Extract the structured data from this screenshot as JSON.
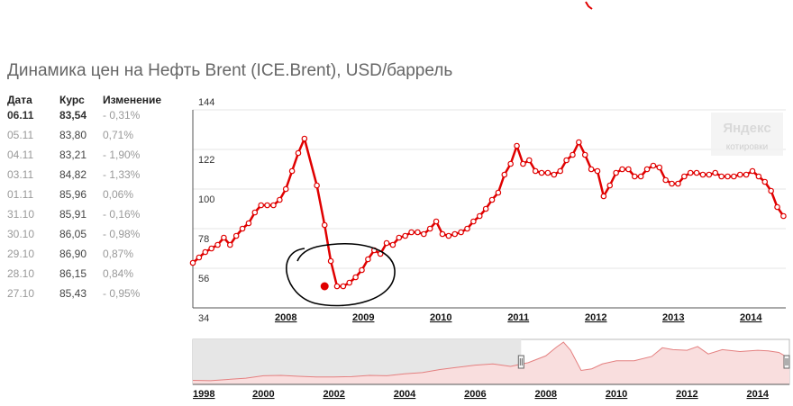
{
  "title": "Динамика цен на Нефть Brent (ICE.Brent), USD/баррель",
  "table": {
    "headers": [
      "Дата",
      "Курс",
      "Изменение"
    ],
    "rows": [
      {
        "date": "06.11",
        "value": "83,54",
        "change": "- 0,31%"
      },
      {
        "date": "05.11",
        "value": "83,80",
        "change": "0,71%"
      },
      {
        "date": "04.11",
        "value": "83,21",
        "change": "- 1,90%"
      },
      {
        "date": "03.11",
        "value": "84,82",
        "change": "- 1,33%"
      },
      {
        "date": "01.11",
        "value": "85,96",
        "change": "0,06%"
      },
      {
        "date": "31.10",
        "value": "85,91",
        "change": "- 0,16%"
      },
      {
        "date": "30.10",
        "value": "86,05",
        "change": "- 0,98%"
      },
      {
        "date": "29.10",
        "value": "86,90",
        "change": "0,87%"
      },
      {
        "date": "28.10",
        "value": "86,15",
        "change": "0,84%"
      },
      {
        "date": "27.10",
        "value": "85,43",
        "change": "- 0,95%"
      }
    ]
  },
  "watermark": {
    "brand": "Яндекс",
    "sub": "котировки"
  },
  "colors": {
    "line": "#e00000",
    "area": "#f9dede",
    "selection": "#e6e6e6",
    "grid": "#e4e4e4",
    "annotation": "#000000"
  },
  "chart_data": [
    {
      "type": "line",
      "title": "",
      "xlabel": "",
      "ylabel": "",
      "ylim": [
        34,
        144
      ],
      "xlim": [
        2007.3,
        2014.95
      ],
      "y_ticks": [
        34,
        56,
        78,
        100,
        122,
        144
      ],
      "x_ticks": [
        "2008",
        "2009",
        "2010",
        "2011",
        "2012",
        "2013",
        "2014"
      ],
      "grid": true,
      "annotation": "hand-drawn circle around the 2009 low",
      "highlight_point": {
        "x": 2009.0,
        "y": 46
      },
      "series": [
        {
          "x": [
            2007.3,
            2007.38,
            2007.46,
            2007.54,
            2007.62,
            2007.7,
            2007.78,
            2007.86,
            2007.94,
            2008.02,
            2008.1,
            2008.18,
            2008.26,
            2008.34,
            2008.42,
            2008.5,
            2008.58,
            2008.66,
            2008.74,
            2008.9,
            2009.0,
            2009.08,
            2009.16,
            2009.24,
            2009.32,
            2009.4,
            2009.48,
            2009.56,
            2009.64,
            2009.72,
            2009.8,
            2009.88,
            2009.96,
            2010.04,
            2010.12,
            2010.2,
            2010.28,
            2010.36,
            2010.44,
            2010.52,
            2010.6,
            2010.68,
            2010.76,
            2010.84,
            2010.92,
            2011.0,
            2011.08,
            2011.16,
            2011.24,
            2011.32,
            2011.4,
            2011.48,
            2011.56,
            2011.64,
            2011.72,
            2011.8,
            2011.88,
            2011.96,
            2012.04,
            2012.12,
            2012.2,
            2012.28,
            2012.36,
            2012.44,
            2012.52,
            2012.6,
            2012.68,
            2012.76,
            2012.84,
            2012.92,
            2013.0,
            2013.08,
            2013.16,
            2013.24,
            2013.32,
            2013.4,
            2013.48,
            2013.56,
            2013.64,
            2013.72,
            2013.8,
            2013.88,
            2013.96,
            2014.04,
            2014.12,
            2014.2,
            2014.28,
            2014.36,
            2014.44,
            2014.52,
            2014.6,
            2014.68,
            2014.76,
            2014.84,
            2014.92
          ],
          "values": [
            59,
            62,
            65,
            67,
            69,
            73,
            69,
            74,
            78,
            81,
            87,
            91,
            91,
            91,
            94,
            100,
            110,
            120,
            128,
            102,
            80,
            60,
            46,
            46,
            48,
            51,
            55,
            61,
            66,
            64,
            70,
            69,
            73,
            74,
            76,
            76,
            75,
            78,
            82,
            75,
            74,
            75,
            76,
            78,
            82,
            85,
            89,
            94,
            98,
            108,
            114,
            124,
            114,
            116,
            110,
            109,
            109,
            108,
            110,
            116,
            119,
            126,
            119,
            111,
            110,
            96,
            102,
            109,
            111,
            111,
            107,
            107,
            111,
            113,
            112,
            105,
            103,
            103,
            107,
            109,
            109,
            108,
            108,
            109,
            107,
            107,
            107,
            108,
            108,
            110,
            107,
            104,
            99,
            90,
            85
          ]
        }
      ]
    },
    {
      "type": "area",
      "title": "",
      "x_ticks": [
        "1998",
        "2000",
        "2002",
        "2004",
        "2006",
        "2008",
        "2010",
        "2012",
        "2014"
      ],
      "xlim": [
        1998,
        2014.9
      ],
      "selection_range": [
        2007.3,
        2014.9
      ],
      "series": [
        {
          "x": [
            1998,
            1998.5,
            1999,
            1999.5,
            2000,
            2000.5,
            2001,
            2001.5,
            2002,
            2002.5,
            2003,
            2003.5,
            2004,
            2004.5,
            2005,
            2005.5,
            2006,
            2006.5,
            2007,
            2007.5,
            2008,
            2008.3,
            2008.5,
            2008.7,
            2009,
            2009.3,
            2009.6,
            2010,
            2010.5,
            2011,
            2011.3,
            2011.6,
            2012,
            2012.3,
            2012.6,
            2013,
            2013.5,
            2014,
            2014.3,
            2014.6,
            2014.9
          ],
          "values": [
            13,
            12,
            16,
            20,
            28,
            29,
            26,
            24,
            24,
            25,
            29,
            28,
            34,
            38,
            48,
            55,
            62,
            66,
            58,
            70,
            92,
            120,
            136,
            110,
            45,
            50,
            66,
            76,
            76,
            90,
            118,
            112,
            110,
            122,
            98,
            112,
            106,
            110,
            108,
            103,
            84
          ]
        }
      ]
    }
  ]
}
